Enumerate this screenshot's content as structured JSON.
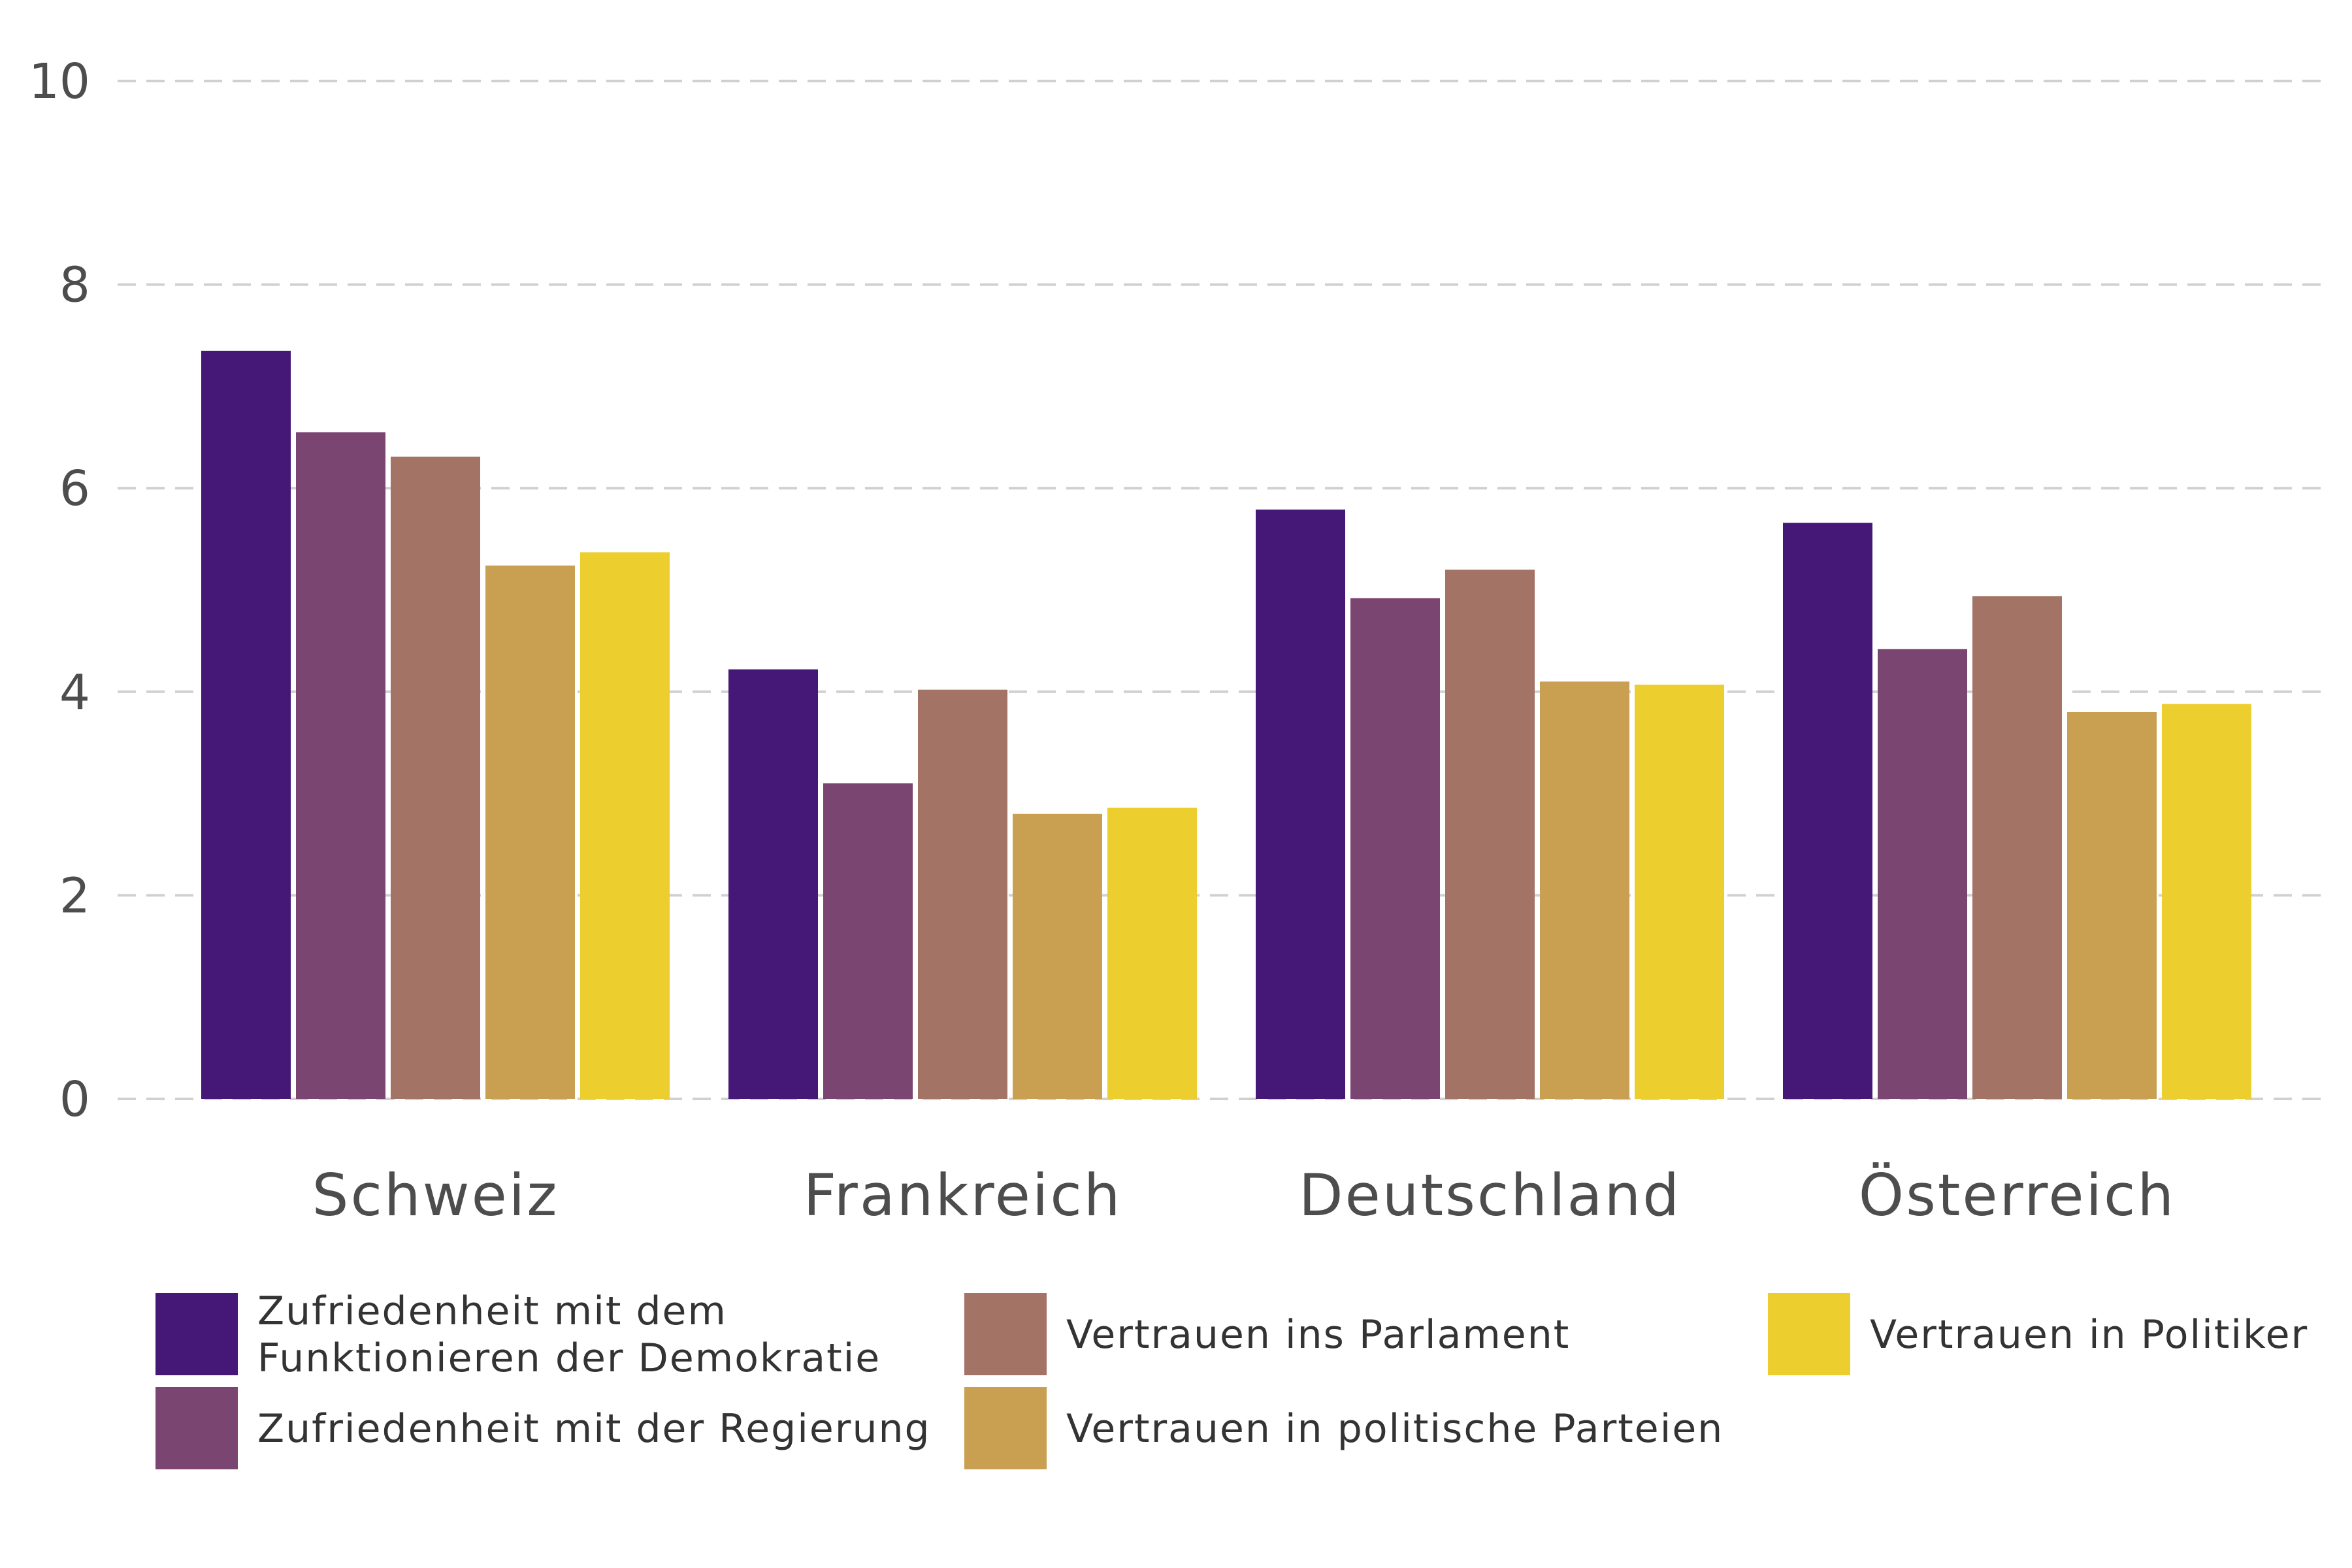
{
  "chart_data": {
    "type": "bar",
    "title": "",
    "xlabel": "",
    "ylabel": "",
    "ylim": [
      0,
      10
    ],
    "yticks": [
      "0",
      "2",
      "4",
      "6",
      "8",
      "10"
    ],
    "grid": true,
    "legend_position": "bottom",
    "categories": [
      "Schweiz",
      "Frankreich",
      "Deutschland",
      "Österreich"
    ],
    "series": [
      {
        "name": "Zufriedenheit mit dem Funktionieren der Demokratie",
        "name_lines": [
          "Zufriedenheit mit dem",
          "Funktionieren der Demokratie"
        ],
        "color": "#451777",
        "values": [
          7.35,
          4.22,
          5.79,
          5.66
        ]
      },
      {
        "name": "Zufriedenheit mit der Regierung",
        "name_lines": [
          "Zufriedenheit mit der Regierung"
        ],
        "color": "#7b4571",
        "values": [
          6.55,
          3.1,
          4.92,
          4.42
        ]
      },
      {
        "name": "Vertrauen ins Parlament",
        "name_lines": [
          "Vertrauen ins Parlament"
        ],
        "color": "#a37365",
        "values": [
          6.31,
          4.02,
          5.2,
          4.94
        ]
      },
      {
        "name": "Vertrauen in politische Parteien",
        "name_lines": [
          "Vertrauen in politische Parteien"
        ],
        "color": "#c9a052",
        "values": [
          5.24,
          2.8,
          4.1,
          3.8
        ]
      },
      {
        "name": "Vertrauen in Politiker",
        "name_lines": [
          "Vertrauen in Politiker"
        ],
        "color": "#ecce2f",
        "values": [
          5.37,
          2.86,
          4.07,
          3.88
        ]
      }
    ]
  }
}
